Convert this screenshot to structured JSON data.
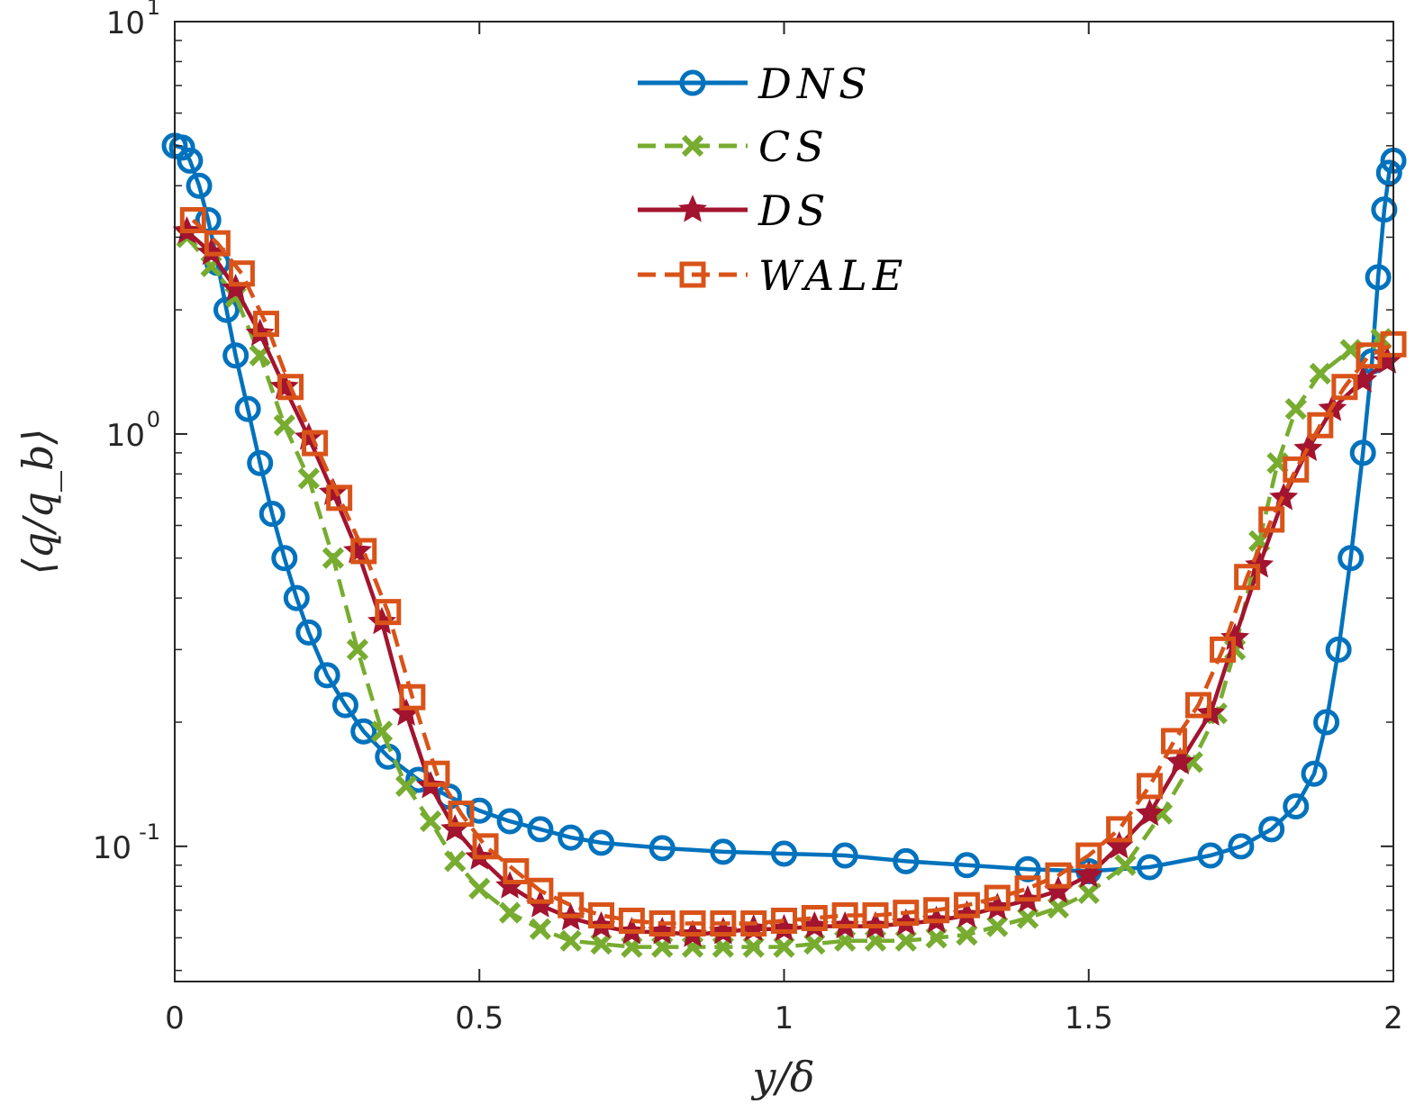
{
  "chart_data": {
    "type": "line",
    "xlabel": "y/δ",
    "ylabel": "⟨q/q_b⟩",
    "yscale": "log",
    "xlim": [
      0,
      2
    ],
    "ylim": [
      0.047,
      10
    ],
    "xticks": [
      {
        "value": 0,
        "label": "0"
      },
      {
        "value": 0.5,
        "label": "0.5"
      },
      {
        "value": 1,
        "label": "1"
      },
      {
        "value": 1.5,
        "label": "1.5"
      },
      {
        "value": 2,
        "label": "2"
      }
    ],
    "yticks": [
      {
        "value": 0.1,
        "base": "10",
        "exp": "-1"
      },
      {
        "value": 1,
        "base": "10",
        "exp": "0"
      },
      {
        "value": 10,
        "base": "10",
        "exp": "1"
      }
    ],
    "legend": {
      "position": "top-center"
    },
    "series": [
      {
        "name": "DNS",
        "label": "DNS",
        "color": "#0072BD",
        "marker": "circle",
        "linestyle": "solid",
        "points": [
          [
            0.0,
            5.0
          ],
          [
            0.012,
            4.95
          ],
          [
            0.025,
            4.6
          ],
          [
            0.04,
            4.0
          ],
          [
            0.055,
            3.3
          ],
          [
            0.07,
            2.6
          ],
          [
            0.085,
            2.0
          ],
          [
            0.1,
            1.55
          ],
          [
            0.12,
            1.15
          ],
          [
            0.14,
            0.85
          ],
          [
            0.16,
            0.64
          ],
          [
            0.18,
            0.5
          ],
          [
            0.2,
            0.4
          ],
          [
            0.22,
            0.33
          ],
          [
            0.25,
            0.26
          ],
          [
            0.28,
            0.22
          ],
          [
            0.31,
            0.19
          ],
          [
            0.35,
            0.165
          ],
          [
            0.4,
            0.145
          ],
          [
            0.45,
            0.132
          ],
          [
            0.5,
            0.122
          ],
          [
            0.55,
            0.115
          ],
          [
            0.6,
            0.11
          ],
          [
            0.65,
            0.105
          ],
          [
            0.7,
            0.102
          ],
          [
            0.8,
            0.099
          ],
          [
            0.9,
            0.097
          ],
          [
            1.0,
            0.096
          ],
          [
            1.1,
            0.095
          ],
          [
            1.2,
            0.092
          ],
          [
            1.3,
            0.09
          ],
          [
            1.4,
            0.088
          ],
          [
            1.5,
            0.087
          ],
          [
            1.6,
            0.089
          ],
          [
            1.7,
            0.095
          ],
          [
            1.75,
            0.1
          ],
          [
            1.8,
            0.11
          ],
          [
            1.84,
            0.125
          ],
          [
            1.87,
            0.15
          ],
          [
            1.89,
            0.2
          ],
          [
            1.91,
            0.3
          ],
          [
            1.93,
            0.5
          ],
          [
            1.95,
            0.9
          ],
          [
            1.965,
            1.5
          ],
          [
            1.975,
            2.4
          ],
          [
            1.985,
            3.5
          ],
          [
            1.993,
            4.3
          ],
          [
            2.0,
            4.6
          ]
        ]
      },
      {
        "name": "CS",
        "label": "CS",
        "color": "#77AC30",
        "marker": "x",
        "linestyle": "dashed",
        "points": [
          [
            0.02,
            3.0
          ],
          [
            0.06,
            2.55
          ],
          [
            0.1,
            2.15
          ],
          [
            0.14,
            1.55
          ],
          [
            0.18,
            1.05
          ],
          [
            0.22,
            0.78
          ],
          [
            0.26,
            0.5
          ],
          [
            0.3,
            0.3
          ],
          [
            0.34,
            0.19
          ],
          [
            0.38,
            0.14
          ],
          [
            0.42,
            0.115
          ],
          [
            0.46,
            0.092
          ],
          [
            0.5,
            0.079
          ],
          [
            0.55,
            0.069
          ],
          [
            0.6,
            0.063
          ],
          [
            0.65,
            0.059
          ],
          [
            0.7,
            0.058
          ],
          [
            0.75,
            0.057
          ],
          [
            0.8,
            0.057
          ],
          [
            0.85,
            0.057
          ],
          [
            0.9,
            0.057
          ],
          [
            0.95,
            0.057
          ],
          [
            1.0,
            0.057
          ],
          [
            1.05,
            0.058
          ],
          [
            1.1,
            0.059
          ],
          [
            1.15,
            0.059
          ],
          [
            1.2,
            0.059
          ],
          [
            1.25,
            0.06
          ],
          [
            1.3,
            0.061
          ],
          [
            1.35,
            0.064
          ],
          [
            1.4,
            0.067
          ],
          [
            1.45,
            0.071
          ],
          [
            1.5,
            0.077
          ],
          [
            1.56,
            0.09
          ],
          [
            1.62,
            0.12
          ],
          [
            1.67,
            0.16
          ],
          [
            1.71,
            0.21
          ],
          [
            1.74,
            0.3
          ],
          [
            1.78,
            0.55
          ],
          [
            1.81,
            0.85
          ],
          [
            1.84,
            1.15
          ],
          [
            1.88,
            1.4
          ],
          [
            1.93,
            1.6
          ],
          [
            1.98,
            1.7
          ]
        ]
      },
      {
        "name": "DS",
        "label": "DS",
        "color": "#A2142F",
        "marker": "star",
        "linestyle": "solid",
        "points": [
          [
            0.02,
            3.1
          ],
          [
            0.06,
            2.75
          ],
          [
            0.1,
            2.25
          ],
          [
            0.14,
            1.75
          ],
          [
            0.18,
            1.3
          ],
          [
            0.22,
            0.98
          ],
          [
            0.26,
            0.72
          ],
          [
            0.3,
            0.52
          ],
          [
            0.34,
            0.35
          ],
          [
            0.38,
            0.21
          ],
          [
            0.42,
            0.14
          ],
          [
            0.46,
            0.11
          ],
          [
            0.5,
            0.094
          ],
          [
            0.55,
            0.08
          ],
          [
            0.6,
            0.072
          ],
          [
            0.65,
            0.067
          ],
          [
            0.7,
            0.064
          ],
          [
            0.75,
            0.062
          ],
          [
            0.8,
            0.062
          ],
          [
            0.85,
            0.061
          ],
          [
            0.9,
            0.062
          ],
          [
            0.95,
            0.063
          ],
          [
            1.0,
            0.063
          ],
          [
            1.05,
            0.064
          ],
          [
            1.1,
            0.064
          ],
          [
            1.15,
            0.064
          ],
          [
            1.2,
            0.065
          ],
          [
            1.25,
            0.066
          ],
          [
            1.3,
            0.068
          ],
          [
            1.35,
            0.071
          ],
          [
            1.4,
            0.074
          ],
          [
            1.45,
            0.078
          ],
          [
            1.5,
            0.085
          ],
          [
            1.55,
            0.1
          ],
          [
            1.6,
            0.12
          ],
          [
            1.65,
            0.16
          ],
          [
            1.7,
            0.21
          ],
          [
            1.74,
            0.32
          ],
          [
            1.78,
            0.48
          ],
          [
            1.82,
            0.7
          ],
          [
            1.86,
            0.92
          ],
          [
            1.9,
            1.15
          ],
          [
            1.95,
            1.35
          ],
          [
            1.99,
            1.5
          ]
        ]
      },
      {
        "name": "WALE",
        "label": "WALE",
        "color": "#D95319",
        "marker": "square",
        "linestyle": "dashed",
        "points": [
          [
            0.03,
            3.3
          ],
          [
            0.07,
            2.9
          ],
          [
            0.11,
            2.45
          ],
          [
            0.15,
            1.85
          ],
          [
            0.19,
            1.3
          ],
          [
            0.23,
            0.95
          ],
          [
            0.27,
            0.7
          ],
          [
            0.31,
            0.52
          ],
          [
            0.35,
            0.37
          ],
          [
            0.39,
            0.23
          ],
          [
            0.43,
            0.15
          ],
          [
            0.47,
            0.12
          ],
          [
            0.51,
            0.1
          ],
          [
            0.56,
            0.087
          ],
          [
            0.6,
            0.078
          ],
          [
            0.65,
            0.072
          ],
          [
            0.7,
            0.068
          ],
          [
            0.75,
            0.066
          ],
          [
            0.8,
            0.065
          ],
          [
            0.85,
            0.065
          ],
          [
            0.9,
            0.065
          ],
          [
            0.95,
            0.065
          ],
          [
            1.0,
            0.066
          ],
          [
            1.05,
            0.067
          ],
          [
            1.1,
            0.068
          ],
          [
            1.15,
            0.068
          ],
          [
            1.2,
            0.069
          ],
          [
            1.25,
            0.07
          ],
          [
            1.3,
            0.072
          ],
          [
            1.35,
            0.075
          ],
          [
            1.4,
            0.079
          ],
          [
            1.45,
            0.085
          ],
          [
            1.5,
            0.095
          ],
          [
            1.55,
            0.11
          ],
          [
            1.6,
            0.14
          ],
          [
            1.64,
            0.18
          ],
          [
            1.68,
            0.22
          ],
          [
            1.72,
            0.3
          ],
          [
            1.76,
            0.45
          ],
          [
            1.8,
            0.62
          ],
          [
            1.84,
            0.82
          ],
          [
            1.88,
            1.05
          ],
          [
            1.92,
            1.3
          ],
          [
            1.96,
            1.55
          ],
          [
            2.0,
            1.65
          ]
        ]
      }
    ]
  }
}
